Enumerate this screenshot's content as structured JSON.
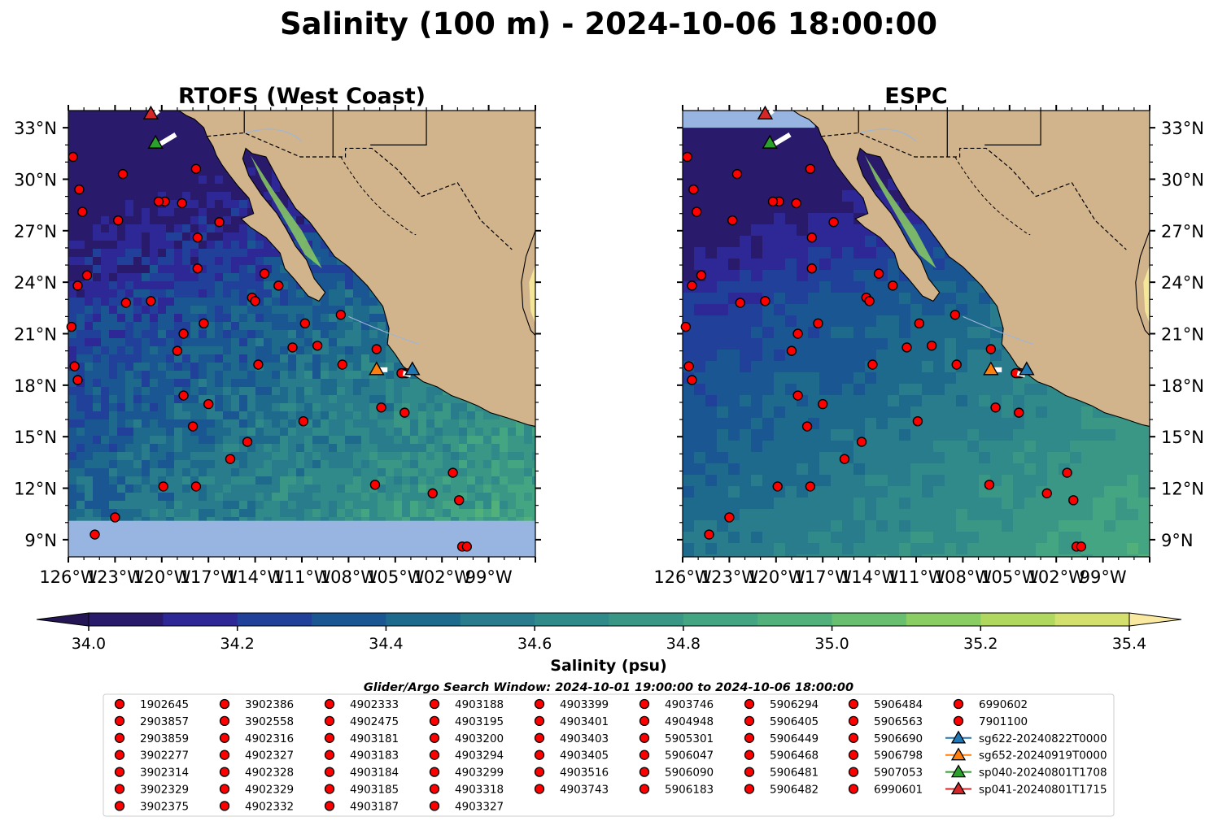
{
  "figure": {
    "title": "Salinity (100 m) - 2024-10-06 18:00:00",
    "search_window": "Glider/Argo Search Window: 2024-10-01 19:00:00 to 2024-10-06 18:00:00"
  },
  "colors": {
    "land": "#d2b48c",
    "water_fill": "#98b4e0",
    "dot_fill": "#ff0000",
    "glider_sg622": "#1f77b4",
    "glider_sg652": "#ff7f0e",
    "glider_sp040": "#2ca02c",
    "glider_sp041": "#d62728"
  },
  "chart_data": [
    {
      "type": "map",
      "panel": "left",
      "title": "RTOFS (West Coast)",
      "variable": "salinity",
      "depth_m": 100,
      "lon_range": [
        -126,
        -96
      ],
      "lat_range": [
        8,
        34
      ],
      "x_tick_labels": [
        "126°W",
        "123°W",
        "120°W",
        "117°W",
        "114°W",
        "111°W",
        "108°W",
        "105°W",
        "102°W",
        "99°W"
      ],
      "y_tick_labels": [
        "33°N",
        "30°N",
        "27°N",
        "24°N",
        "21°N",
        "18°N",
        "15°N",
        "12°N",
        "9°N"
      ],
      "y_axis_side": "left"
    },
    {
      "type": "map",
      "panel": "right",
      "title": "ESPC",
      "variable": "salinity",
      "depth_m": 100,
      "lon_range": [
        -126,
        -96
      ],
      "lat_range": [
        8,
        34
      ],
      "x_tick_labels": [
        "126°W",
        "123°W",
        "120°W",
        "117°W",
        "114°W",
        "111°W",
        "108°W",
        "105°W",
        "102°W",
        "99°W"
      ],
      "y_tick_labels": [
        "33°N",
        "30°N",
        "27°N",
        "24°N",
        "21°N",
        "18°N",
        "15°N",
        "12°N",
        "9°N"
      ],
      "y_axis_side": "right"
    }
  ],
  "colorbar": {
    "label": "Salinity (psu)",
    "min": 34.0,
    "max": 35.4,
    "step": 0.1,
    "ticks": [
      "34.0",
      "34.2",
      "34.4",
      "34.6",
      "34.8",
      "35.0",
      "35.2",
      "35.4"
    ],
    "extend": "both",
    "colors": [
      "#2a1a6b",
      "#2d2896",
      "#21409a",
      "#1a5792",
      "#1e6a8d",
      "#287c8c",
      "#2f8a89",
      "#3a9786",
      "#44a582",
      "#52b17b",
      "#68bf70",
      "#8acd62",
      "#b0d75e",
      "#d4e06e"
    ],
    "under_color": "#241654",
    "over_color": "#fae9a0"
  },
  "observations": [
    {
      "id": "1902645",
      "lon": -125.7,
      "lat": 31.3
    },
    {
      "id": "2903857",
      "lon": -122.5,
      "lat": 30.3
    },
    {
      "id": "2903859",
      "lon": -125.3,
      "lat": 29.4
    },
    {
      "id": "3902277",
      "lon": -125.1,
      "lat": 28.1
    },
    {
      "id": "3902314",
      "lon": -119.8,
      "lat": 28.7
    },
    {
      "id": "3902329",
      "lon": -120.2,
      "lat": 28.7
    },
    {
      "id": "3902375",
      "lon": -118.7,
      "lat": 28.6
    },
    {
      "id": "3902386",
      "lon": -117.8,
      "lat": 30.6
    },
    {
      "id": "3902558",
      "lon": -122.8,
      "lat": 27.6
    },
    {
      "id": "4902316",
      "lon": -117.7,
      "lat": 26.6
    },
    {
      "id": "4902327",
      "lon": -116.3,
      "lat": 27.5
    },
    {
      "id": "4902328",
      "lon": -117.7,
      "lat": 24.8
    },
    {
      "id": "4902329",
      "lon": -124.8,
      "lat": 24.4
    },
    {
      "id": "4902332",
      "lon": -125.4,
      "lat": 23.8
    },
    {
      "id": "4902333",
      "lon": -122.3,
      "lat": 22.8
    },
    {
      "id": "4902475",
      "lon": -120.7,
      "lat": 22.9
    },
    {
      "id": "4903181",
      "lon": -113.4,
      "lat": 24.5
    },
    {
      "id": "4903183",
      "lon": -114.2,
      "lat": 23.1
    },
    {
      "id": "4903184",
      "lon": -114.0,
      "lat": 22.9
    },
    {
      "id": "4903185",
      "lon": -112.5,
      "lat": 23.8
    },
    {
      "id": "4903187",
      "lon": -125.8,
      "lat": 21.4
    },
    {
      "id": "4903188",
      "lon": -117.3,
      "lat": 21.6
    },
    {
      "id": "4903195",
      "lon": -118.6,
      "lat": 21.0
    },
    {
      "id": "4903200",
      "lon": -119.0,
      "lat": 20.0
    },
    {
      "id": "4903294",
      "lon": -110.8,
      "lat": 21.6
    },
    {
      "id": "4903299",
      "lon": -111.6,
      "lat": 20.2
    },
    {
      "id": "4903318",
      "lon": -110.0,
      "lat": 20.3
    },
    {
      "id": "4903327",
      "lon": -108.5,
      "lat": 22.1
    },
    {
      "id": "4903399",
      "lon": -125.6,
      "lat": 19.1
    },
    {
      "id": "4903401",
      "lon": -125.4,
      "lat": 18.3
    },
    {
      "id": "4903403",
      "lon": -113.8,
      "lat": 19.2
    },
    {
      "id": "4903405",
      "lon": -108.4,
      "lat": 19.2
    },
    {
      "id": "4903516",
      "lon": -106.2,
      "lat": 20.1
    },
    {
      "id": "4903743",
      "lon": -118.6,
      "lat": 17.4
    },
    {
      "id": "4903746",
      "lon": -117.0,
      "lat": 16.9
    },
    {
      "id": "4904948",
      "lon": -118.0,
      "lat": 15.6
    },
    {
      "id": "5905301",
      "lon": -110.9,
      "lat": 15.9
    },
    {
      "id": "5906047",
      "lon": -105.9,
      "lat": 16.7
    },
    {
      "id": "5906090",
      "lon": -104.4,
      "lat": 16.4
    },
    {
      "id": "5906183",
      "lon": -114.5,
      "lat": 14.7
    },
    {
      "id": "5906294",
      "lon": -115.6,
      "lat": 13.7
    },
    {
      "id": "5906405",
      "lon": -119.9,
      "lat": 12.1
    },
    {
      "id": "5906449",
      "lon": -117.8,
      "lat": 12.1
    },
    {
      "id": "5906468",
      "lon": -106.3,
      "lat": 12.2
    },
    {
      "id": "5906481",
      "lon": -102.6,
      "lat": 11.7
    },
    {
      "id": "5906482",
      "lon": -101.3,
      "lat": 12.9
    },
    {
      "id": "5906484",
      "lon": -100.9,
      "lat": 11.3
    },
    {
      "id": "5906563",
      "lon": -123.0,
      "lat": 10.3
    },
    {
      "id": "5906690",
      "lon": -124.3,
      "lat": 9.3
    },
    {
      "id": "5906798",
      "lon": -100.7,
      "lat": 8.6
    },
    {
      "id": "5907053",
      "lon": -100.4,
      "lat": 8.6
    },
    {
      "id": "6990601",
      "lon": -104.3,
      "lat": 18.7
    },
    {
      "id": "6990602",
      "lon": -104.5,
      "lat": 18.7
    },
    {
      "id": "7901100",
      "lon": -104.6,
      "lat": 18.7
    }
  ],
  "gliders": [
    {
      "id": "sg622-20240822T0000",
      "lon": -103.9,
      "lat": 18.9,
      "color": "#1f77b4"
    },
    {
      "id": "sg652-20240919T0000",
      "lon": -106.2,
      "lat": 18.9,
      "color": "#ff7f0e"
    },
    {
      "id": "sp040-20240801T1708",
      "lon": -120.4,
      "lat": 32.1,
      "color": "#2ca02c"
    },
    {
      "id": "sp041-20240801T1715",
      "lon": -120.7,
      "lat": 33.8,
      "color": "#d62728"
    }
  ]
}
